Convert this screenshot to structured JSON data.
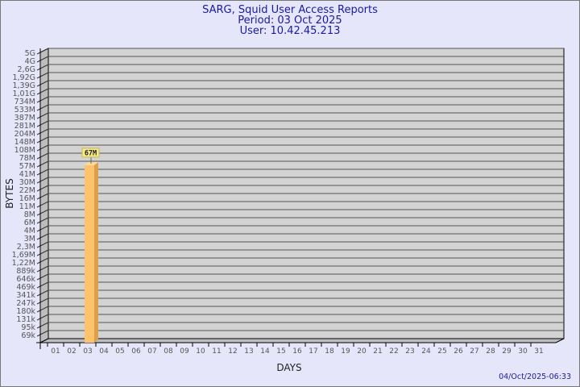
{
  "chart_data": {
    "type": "bar",
    "title": "SARG, Squid User Access Reports",
    "subtitle": [
      "Period: 03 Oct 2025",
      "User: 10.42.45.213"
    ],
    "xlabel": "DAYS",
    "ylabel": "BYTES",
    "y_scale": "log",
    "grid": true,
    "categories": [
      "01",
      "02",
      "03",
      "04",
      "05",
      "06",
      "07",
      "08",
      "09",
      "10",
      "11",
      "12",
      "13",
      "14",
      "15",
      "16",
      "17",
      "18",
      "19",
      "20",
      "21",
      "22",
      "23",
      "24",
      "25",
      "26",
      "27",
      "28",
      "29",
      "30",
      "31"
    ],
    "values": [
      null,
      null,
      67000000,
      null,
      null,
      null,
      null,
      null,
      null,
      null,
      null,
      null,
      null,
      null,
      null,
      null,
      null,
      null,
      null,
      null,
      null,
      null,
      null,
      null,
      null,
      null,
      null,
      null,
      null,
      null,
      null
    ],
    "data_labels": {
      "03": "67M"
    },
    "y_tick_labels": [
      "5G",
      "4G",
      "2,6G",
      "1,92G",
      "1,39G",
      "1,01G",
      "734M",
      "533M",
      "387M",
      "281M",
      "204M",
      "148M",
      "108M",
      "78M",
      "57M",
      "41M",
      "30M",
      "22M",
      "16M",
      "11M",
      "8M",
      "6M",
      "4M",
      "3M",
      "2,3M",
      "1,69M",
      "1,22M",
      "889k",
      "646k",
      "469k",
      "341k",
      "247k",
      "180k",
      "131k",
      "95k",
      "69k"
    ],
    "colors": {
      "background": "#e6e6fa",
      "plot": "#d3d3d3",
      "bar_front": "#fdc36c",
      "bar_side": "#dca04c",
      "bar_top": "#fddc98",
      "title": "#1a1a9c",
      "label_box": "#f5e98a"
    }
  },
  "footer": {
    "timestamp": "04/Oct/2025-06:33"
  }
}
